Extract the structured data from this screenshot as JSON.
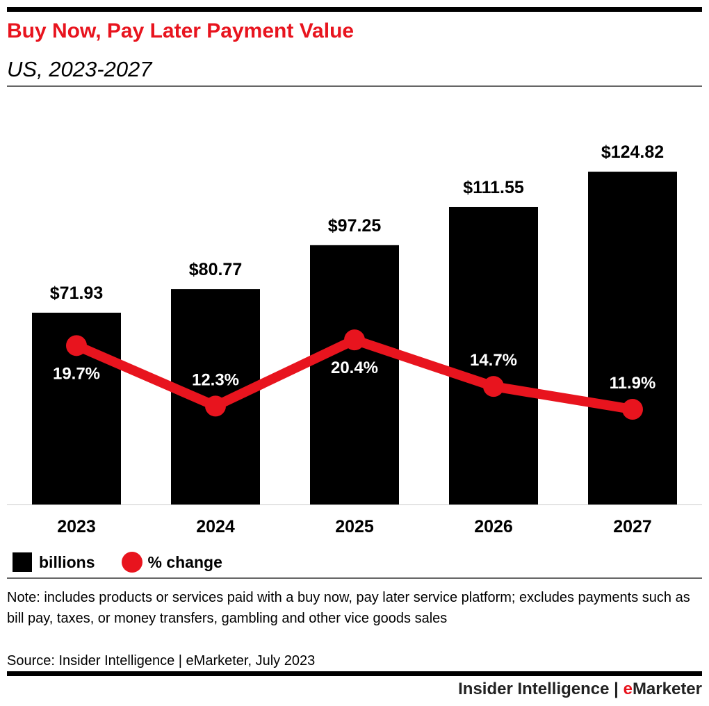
{
  "header": {
    "title": "Buy Now, Pay Later Payment Value",
    "subtitle": "US, 2023-2027"
  },
  "chart_data": {
    "type": "bar+line",
    "title": "Buy Now, Pay Later Payment Value",
    "subtitle": "US, 2023-2027",
    "categories": [
      "2023",
      "2024",
      "2025",
      "2026",
      "2027"
    ],
    "series": [
      {
        "name": "billions",
        "type": "bar",
        "values": [
          71.93,
          80.77,
          97.25,
          111.55,
          124.82
        ],
        "labels": [
          "$71.93",
          "$80.77",
          "$97.25",
          "$111.55",
          "$124.82"
        ],
        "color": "#000000"
      },
      {
        "name": "% change",
        "type": "line",
        "values": [
          19.7,
          12.3,
          20.4,
          14.7,
          11.9
        ],
        "labels": [
          "19.7%",
          "12.3%",
          "20.4%",
          "14.7%",
          "11.9%"
        ],
        "color": "#e8141e"
      }
    ],
    "grid": false,
    "legend": "bottom-left"
  },
  "legend": {
    "bars": "billions",
    "line": "% change"
  },
  "note": "Note: includes products or services paid with a buy now, pay later service platform; excludes payments such as bill pay, taxes, or money transfers, gambling and other vice goods sales",
  "source": "Source: Insider Intelligence | eMarketer, July 2023",
  "footer": {
    "brand1": "Insider Intelligence",
    "sep": " | ",
    "brand2_e": "e",
    "brand2_rest": "Marketer"
  }
}
